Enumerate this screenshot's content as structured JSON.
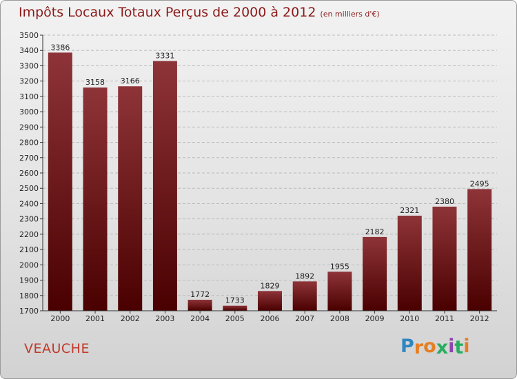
{
  "title": "Impôts Locaux Totaux Perçus de 2000 à 2012",
  "title_unit": "(en milliers d'€)",
  "city": "VEAUCHE",
  "logo": {
    "letters": [
      "P",
      "r",
      "o",
      "x",
      "i",
      "t",
      "i"
    ],
    "colors": [
      "#2e86c1",
      "#e67e22",
      "#e67e22",
      "#27ae60",
      "#8e44ad",
      "#27ae60",
      "#e67e22"
    ]
  },
  "colors": {
    "bar_top": "#8e3438",
    "bar_bottom": "#4a0000",
    "axis": "#333333",
    "grid": "#bbbbbb"
  },
  "chart_data": {
    "type": "bar",
    "categories": [
      "2000",
      "2001",
      "2002",
      "2003",
      "2004",
      "2005",
      "2006",
      "2007",
      "2008",
      "2009",
      "2010",
      "2011",
      "2012"
    ],
    "values": [
      3386,
      3158,
      3166,
      3331,
      1772,
      1733,
      1829,
      1892,
      1955,
      2182,
      2321,
      2380,
      2495
    ],
    "ylim": [
      1700,
      3500
    ],
    "yticks": [
      1700,
      1800,
      1900,
      2000,
      2100,
      2200,
      2300,
      2400,
      2500,
      2600,
      2700,
      2800,
      2900,
      3000,
      3100,
      3200,
      3300,
      3400,
      3500
    ],
    "grid": true,
    "grid_style": "dashed",
    "data_labels": true
  }
}
